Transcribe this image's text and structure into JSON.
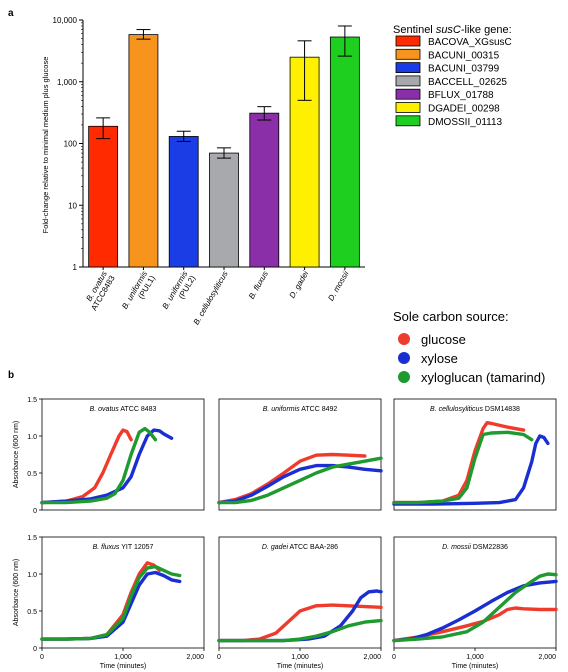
{
  "panel_a": {
    "label": "a",
    "ylabel": "Fold-change relative to minimal medium plus glucose",
    "legend_title_pre": "Sentinel ",
    "legend_title_em": "susC",
    "legend_title_post": "-like gene:",
    "y_ticks": [
      "1",
      "10",
      "100",
      "1,000",
      "10,000"
    ],
    "categories": [
      {
        "name1": "B. ovatus",
        "name2": "ATCC8483"
      },
      {
        "name1": "B. uniformis",
        "name2": "(PUL1)"
      },
      {
        "name1": "B. uniformis",
        "name2": "(PUL2)"
      },
      {
        "name1": "B. cellulosyliticus",
        "name2": ""
      },
      {
        "name1": "B. fluxus",
        "name2": ""
      },
      {
        "name1": "D. gadei",
        "name2": ""
      },
      {
        "name1": "D. mossii",
        "name2": ""
      }
    ]
  },
  "panel_b": {
    "label": "b",
    "legend_title": "Sole carbon source:",
    "legend": [
      {
        "label": "glucose",
        "color": "#ef3b2c"
      },
      {
        "label": "xylose",
        "color": "#1a2fd1"
      },
      {
        "label": "xyloglucan (tamarind)",
        "color": "#1e9a2e"
      }
    ],
    "ylabel": "Absorbance (600 nm)",
    "xlabel": "Time (minutes)",
    "x_ticks": [
      "0",
      "1,000",
      "2,000"
    ],
    "y_ticks": [
      "0",
      "0.5",
      "1.0",
      "1.5"
    ],
    "subplots": [
      {
        "title_em": "B. ovatus",
        "title_rest": " ATCC 8483"
      },
      {
        "title_em": "B. uniformis",
        "title_rest": " ATCC 8492"
      },
      {
        "title_em": "B. cellulosyliticus",
        "title_rest": " DSM14838"
      },
      {
        "title_em": "B. fluxus",
        "title_rest": " YIT 12057"
      },
      {
        "title_em": "D. gadei",
        "title_rest": " ATCC BAA-286"
      },
      {
        "title_em": "D. mossii",
        "title_rest": " DSM22836"
      }
    ]
  },
  "chart_data": [
    {
      "type": "bar",
      "yscale": "log",
      "ylim": [
        1,
        10000
      ],
      "ylabel": "Fold-change relative to minimal medium plus glucose",
      "categories": [
        "B. ovatus ATCC8483",
        "B. uniformis (PUL1)",
        "B. uniformis (PUL2)",
        "B. cellulosyliticus",
        "B. fluxus",
        "D. gadei",
        "D. mossii"
      ],
      "series": [
        {
          "name": "BACOVA_XGsusC",
          "color": "#ff2a00",
          "value": 190,
          "err_low": 120,
          "err_high": 260
        },
        {
          "name": "BACUNI_00315",
          "color": "#f7941d",
          "value": 5800,
          "err_low": 4900,
          "err_high": 7000
        },
        {
          "name": "BACUNI_03799",
          "color": "#1b3de6",
          "value": 130,
          "err_low": 108,
          "err_high": 158
        },
        {
          "name": "BACCELL_02625",
          "color": "#a7a9ac",
          "value": 70,
          "err_low": 58,
          "err_high": 85
        },
        {
          "name": "BFLUX_01788",
          "color": "#8b2fa8",
          "value": 310,
          "err_low": 240,
          "err_high": 395
        },
        {
          "name": "DGADEI_00298",
          "color": "#ffef00",
          "value": 2500,
          "err_low": 500,
          "err_high": 4600
        },
        {
          "name": "DMOSSII_01113",
          "color": "#1fcf1f",
          "value": 5300,
          "err_low": 2600,
          "err_high": 8000
        }
      ],
      "legend_position": "right"
    },
    {
      "type": "line",
      "xlabel": "Time (minutes)",
      "ylabel": "Absorbance (600 nm)",
      "xlim": [
        0,
        2000
      ],
      "ylim": [
        0,
        1.5
      ],
      "layout": "2x3 grid",
      "series_names": [
        "glucose",
        "xylose",
        "xyloglucan (tamarind)"
      ],
      "subplots": [
        {
          "title": "B. ovatus ATCC 8483",
          "series": [
            {
              "name": "glucose",
              "x": [
                0,
                300,
                500,
                650,
                750,
                850,
                950,
                1000,
                1050,
                1100
              ],
              "y": [
                0.1,
                0.12,
                0.18,
                0.3,
                0.5,
                0.75,
                1.0,
                1.08,
                1.06,
                0.95
              ]
            },
            {
              "name": "xylose",
              "x": [
                0,
                300,
                600,
                800,
                1000,
                1100,
                1200,
                1300,
                1380,
                1450,
                1500,
                1600
              ],
              "y": [
                0.1,
                0.12,
                0.15,
                0.2,
                0.3,
                0.45,
                0.75,
                1.0,
                1.08,
                1.07,
                1.03,
                0.97
              ]
            },
            {
              "name": "xyloglucan (tamarind)",
              "x": [
                0,
                300,
                600,
                800,
                900,
                1000,
                1100,
                1200,
                1270,
                1330,
                1400
              ],
              "y": [
                0.1,
                0.1,
                0.12,
                0.16,
                0.22,
                0.4,
                0.75,
                1.05,
                1.1,
                1.05,
                0.95
              ]
            }
          ]
        },
        {
          "title": "B. uniformis ATCC 8492",
          "series": [
            {
              "name": "glucose",
              "x": [
                0,
                200,
                400,
                600,
                800,
                1000,
                1200,
                1400,
                1600,
                1800
              ],
              "y": [
                0.1,
                0.14,
                0.22,
                0.35,
                0.5,
                0.66,
                0.74,
                0.75,
                0.74,
                0.73
              ]
            },
            {
              "name": "xylose",
              "x": [
                0,
                200,
                400,
                600,
                800,
                1000,
                1200,
                1400,
                1600,
                1800,
                2000
              ],
              "y": [
                0.1,
                0.12,
                0.2,
                0.32,
                0.45,
                0.55,
                0.6,
                0.6,
                0.58,
                0.55,
                0.53
              ]
            },
            {
              "name": "xyloglucan (tamarind)",
              "x": [
                0,
                200,
                400,
                600,
                800,
                1000,
                1200,
                1400,
                1600,
                1800,
                2000
              ],
              "y": [
                0.1,
                0.1,
                0.13,
                0.2,
                0.3,
                0.4,
                0.5,
                0.58,
                0.62,
                0.66,
                0.7
              ]
            }
          ]
        },
        {
          "title": "B. cellulosyliticus DSM14838",
          "series": [
            {
              "name": "glucose",
              "x": [
                0,
                300,
                600,
                800,
                900,
                1000,
                1100,
                1150,
                1200,
                1400,
                1600
              ],
              "y": [
                0.1,
                0.1,
                0.12,
                0.2,
                0.4,
                0.8,
                1.1,
                1.18,
                1.17,
                1.12,
                1.08
              ]
            },
            {
              "name": "xylose",
              "x": [
                0,
                500,
                1000,
                1300,
                1500,
                1600,
                1700,
                1750,
                1800,
                1850,
                1900
              ],
              "y": [
                0.08,
                0.08,
                0.09,
                0.1,
                0.14,
                0.3,
                0.65,
                0.9,
                1.0,
                0.98,
                0.9
              ]
            },
            {
              "name": "xyloglucan (tamarind)",
              "x": [
                0,
                300,
                600,
                800,
                900,
                1000,
                1100,
                1200,
                1400,
                1600,
                1700
              ],
              "y": [
                0.1,
                0.1,
                0.12,
                0.16,
                0.3,
                0.7,
                1.02,
                1.04,
                1.05,
                1.02,
                0.95
              ]
            }
          ]
        },
        {
          "title": "B. fluxus YIT 12057",
          "series": [
            {
              "name": "glucose",
              "x": [
                0,
                300,
                600,
                800,
                1000,
                1100,
                1200,
                1300,
                1380,
                1450
              ],
              "y": [
                0.12,
                0.12,
                0.13,
                0.18,
                0.45,
                0.75,
                1.0,
                1.15,
                1.12,
                1.05
              ]
            },
            {
              "name": "xylose",
              "x": [
                0,
                300,
                600,
                800,
                1000,
                1100,
                1200,
                1300,
                1400,
                1500,
                1600,
                1700
              ],
              "y": [
                0.12,
                0.12,
                0.13,
                0.16,
                0.35,
                0.6,
                0.85,
                1.0,
                1.02,
                0.98,
                0.92,
                0.9
              ]
            },
            {
              "name": "xyloglucan (tamarind)",
              "x": [
                0,
                300,
                600,
                800,
                1000,
                1100,
                1200,
                1300,
                1400,
                1500,
                1600,
                1700
              ],
              "y": [
                0.12,
                0.12,
                0.13,
                0.18,
                0.4,
                0.7,
                0.95,
                1.08,
                1.1,
                1.05,
                1.0,
                0.98
              ]
            }
          ]
        },
        {
          "title": "D. gadei ATCC BAA-286",
          "series": [
            {
              "name": "glucose",
              "x": [
                0,
                300,
                500,
                700,
                850,
                1000,
                1200,
                1400,
                1600,
                1800,
                2000
              ],
              "y": [
                0.1,
                0.1,
                0.12,
                0.2,
                0.35,
                0.5,
                0.57,
                0.58,
                0.57,
                0.56,
                0.55
              ]
            },
            {
              "name": "xylose",
              "x": [
                0,
                400,
                800,
                1100,
                1300,
                1500,
                1650,
                1750,
                1850,
                1950,
                2000
              ],
              "y": [
                0.1,
                0.1,
                0.1,
                0.12,
                0.16,
                0.3,
                0.5,
                0.68,
                0.76,
                0.77,
                0.76
              ]
            },
            {
              "name": "xyloglucan (tamarind)",
              "x": [
                0,
                400,
                800,
                1000,
                1200,
                1400,
                1600,
                1800,
                2000
              ],
              "y": [
                0.1,
                0.1,
                0.1,
                0.12,
                0.16,
                0.22,
                0.3,
                0.35,
                0.37
              ]
            }
          ]
        },
        {
          "title": "D. mossii DSM22836",
          "series": [
            {
              "name": "glucose",
              "x": [
                0,
                300,
                600,
                900,
                1100,
                1300,
                1400,
                1500,
                1600,
                1800,
                2000
              ],
              "y": [
                0.1,
                0.15,
                0.22,
                0.3,
                0.36,
                0.45,
                0.52,
                0.54,
                0.53,
                0.52,
                0.52
              ]
            },
            {
              "name": "xylose",
              "x": [
                0,
                200,
                400,
                600,
                800,
                1000,
                1200,
                1400,
                1600,
                1800,
                2000
              ],
              "y": [
                0.1,
                0.12,
                0.18,
                0.27,
                0.38,
                0.5,
                0.63,
                0.75,
                0.84,
                0.88,
                0.9
              ]
            },
            {
              "name": "xyloglucan (tamarind)",
              "x": [
                0,
                300,
                600,
                900,
                1100,
                1300,
                1500,
                1700,
                1800,
                1900,
                2000
              ],
              "y": [
                0.1,
                0.12,
                0.15,
                0.22,
                0.35,
                0.55,
                0.75,
                0.9,
                0.97,
                1.0,
                0.99
              ]
            }
          ]
        }
      ]
    }
  ]
}
